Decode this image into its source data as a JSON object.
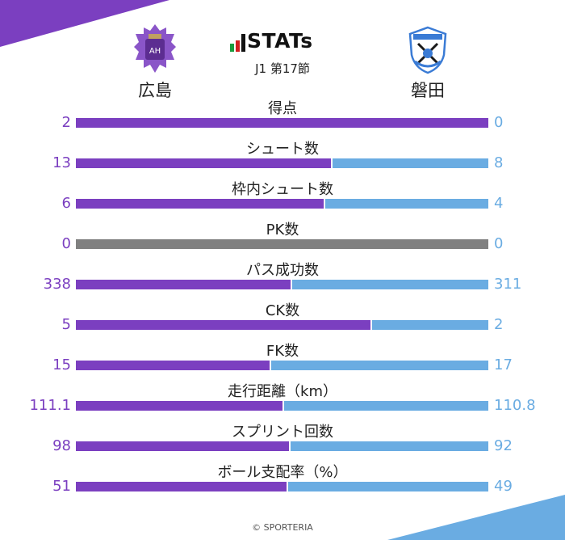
{
  "header": {
    "logo_text": "STATs",
    "subtitle": "J1 第17節",
    "home_team": "広島",
    "away_team": "磐田"
  },
  "colors": {
    "home": "#7b3fc0",
    "away": "#6aace2",
    "neutral": "#808080"
  },
  "footer": "© SPORTERIA",
  "chart_data": {
    "type": "bar",
    "orientation": "horizontal-stacked",
    "series": [
      {
        "name": "広島",
        "values": [
          "2",
          "13",
          "6",
          "0",
          "338",
          "5",
          "15",
          "111.1",
          "98",
          "51"
        ]
      },
      {
        "name": "磐田",
        "values": [
          "0",
          "8",
          "4",
          "0",
          "311",
          "2",
          "17",
          "110.8",
          "92",
          "49"
        ]
      }
    ],
    "categories": [
      "得点",
      "シュート数",
      "枠内シュート数",
      "PK数",
      "パス成功数",
      "CK数",
      "FK数",
      "走行距離（km）",
      "スプリント回数",
      "ボール支配率（%）"
    ]
  }
}
